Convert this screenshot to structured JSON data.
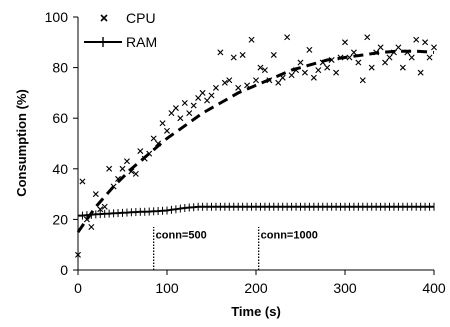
{
  "chart_data": {
    "type": "scatter",
    "xlabel": "Time (s)",
    "ylabel": "Consumption  (%)",
    "xlim": [
      0,
      400
    ],
    "ylim": [
      0,
      100
    ],
    "xticks": [
      "0",
      "100",
      "200",
      "300",
      "400"
    ],
    "yticks": [
      "0",
      "20",
      "40",
      "60",
      "80",
      "100"
    ],
    "grid": false,
    "legend": "top-left",
    "series": [
      {
        "name": "CPU",
        "kind": "scatter-with-dashed-trend",
        "x": [
          0,
          5,
          10,
          15,
          20,
          25,
          30,
          35,
          40,
          45,
          50,
          55,
          60,
          65,
          70,
          75,
          80,
          85,
          90,
          95,
          100,
          105,
          110,
          115,
          120,
          125,
          130,
          135,
          140,
          145,
          150,
          155,
          160,
          165,
          170,
          175,
          180,
          185,
          190,
          195,
          200,
          205,
          210,
          215,
          220,
          225,
          230,
          235,
          240,
          245,
          250,
          255,
          260,
          265,
          270,
          275,
          280,
          285,
          290,
          295,
          300,
          305,
          310,
          315,
          320,
          325,
          330,
          335,
          340,
          345,
          350,
          355,
          360,
          365,
          370,
          375,
          380,
          385,
          390,
          395,
          400
        ],
        "y": [
          6,
          35,
          20,
          17,
          30,
          24,
          25,
          40,
          33,
          36,
          40,
          43,
          39,
          38,
          47,
          44,
          46,
          52,
          50,
          58,
          55,
          62,
          64,
          60,
          66,
          62,
          65,
          68,
          70,
          67,
          69,
          72,
          86,
          74,
          75,
          84,
          72,
          85,
          73,
          91,
          75,
          80,
          79,
          75,
          85,
          74,
          76,
          92,
          77,
          79,
          82,
          78,
          87,
          76,
          79,
          82,
          80,
          83,
          78,
          84,
          90,
          84,
          86,
          82,
          75,
          92,
          80,
          86,
          88,
          82,
          84,
          86,
          88,
          80,
          86,
          84,
          91,
          78,
          90,
          84,
          88
        ],
        "trend_x": [
          0,
          20,
          40,
          60,
          80,
          100,
          120,
          140,
          160,
          180,
          200,
          220,
          240,
          260,
          280,
          300,
          320,
          340,
          360,
          380,
          400
        ],
        "trend_y": [
          15,
          25,
          33,
          40,
          46,
          52,
          57,
          62,
          66,
          70,
          73,
          76,
          79,
          81,
          83,
          84,
          85,
          86,
          86.5,
          86.5,
          86
        ]
      },
      {
        "name": "RAM",
        "kind": "line-with-markers",
        "x": [
          0,
          5,
          10,
          15,
          20,
          25,
          30,
          35,
          40,
          45,
          50,
          55,
          60,
          65,
          70,
          75,
          80,
          85,
          90,
          95,
          100,
          105,
          110,
          115,
          120,
          125,
          130,
          135,
          140,
          145,
          150,
          155,
          160,
          165,
          170,
          175,
          180,
          185,
          190,
          195,
          200,
          205,
          210,
          215,
          220,
          225,
          230,
          235,
          240,
          245,
          250,
          255,
          260,
          265,
          270,
          275,
          280,
          285,
          290,
          295,
          300,
          305,
          310,
          315,
          320,
          325,
          330,
          335,
          340,
          345,
          350,
          355,
          360,
          365,
          370,
          375,
          380,
          385,
          390,
          395,
          400
        ],
        "y": [
          21.5,
          21.5,
          21.7,
          21.8,
          22,
          22.1,
          22.2,
          22.3,
          22.4,
          22.5,
          22.6,
          22.7,
          22.8,
          22.9,
          23,
          23,
          23.1,
          23.2,
          23.3,
          23.4,
          23.5,
          23.8,
          24,
          24.3,
          24.5,
          24.7,
          24.8,
          25,
          25,
          25,
          25,
          25,
          25,
          25,
          25,
          25,
          25,
          25,
          25,
          25,
          25,
          25,
          25,
          25,
          25,
          25,
          25,
          25,
          25,
          25,
          25,
          25,
          25,
          25,
          25,
          25,
          25,
          25,
          25,
          25,
          25,
          25,
          25,
          25,
          25,
          25,
          25,
          25,
          25,
          25,
          25,
          25,
          25,
          25,
          25,
          25,
          25,
          25,
          25,
          25,
          25
        ]
      }
    ],
    "annotations": [
      {
        "label": "conn=500",
        "x": 85
      },
      {
        "label": "conn=1000",
        "x": 203
      }
    ]
  }
}
